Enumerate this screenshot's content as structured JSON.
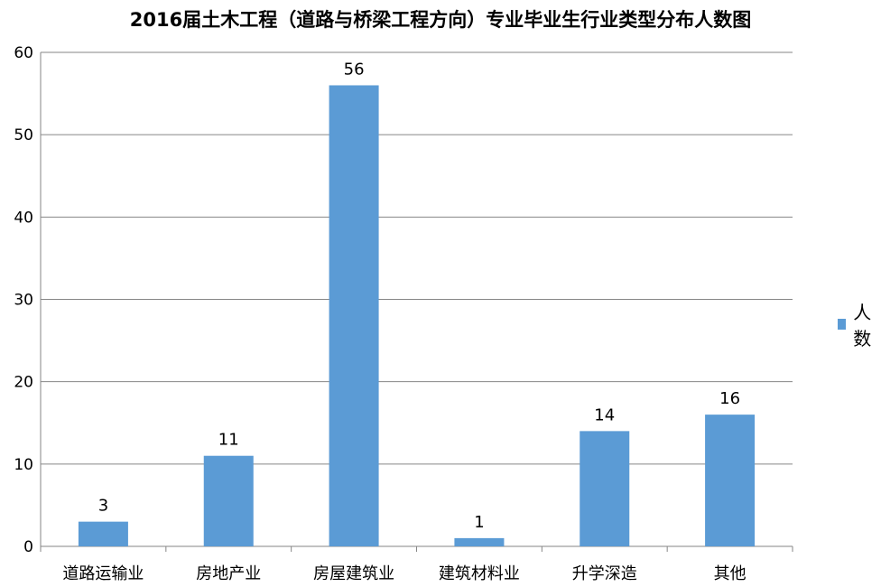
{
  "colors": {
    "bar": "#5B9BD5",
    "grid": "#868686",
    "axis": "#868686"
  },
  "chart_data": {
    "type": "bar",
    "title": "2016届土木工程（道路与桥梁工程方向）专业毕业生行业类型分布人数图",
    "categories": [
      "道路运输业",
      "房地产业",
      "房屋建筑业",
      "建筑材料业",
      "升学深造",
      "其他"
    ],
    "series": [
      {
        "name": "人数",
        "values": [
          3,
          11,
          56,
          1,
          14,
          16
        ]
      }
    ],
    "ylim": [
      0,
      60
    ],
    "yticks": [
      0,
      10,
      20,
      30,
      40,
      50,
      60
    ],
    "grid": true,
    "legend": "right",
    "data_labels": true
  }
}
